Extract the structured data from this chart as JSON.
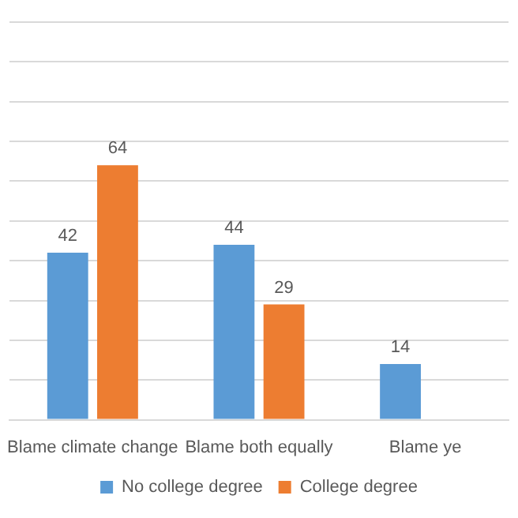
{
  "chart_data": {
    "type": "bar",
    "categories": [
      "Blame climate change",
      "Blame both equally",
      "Blame ye"
    ],
    "series": [
      {
        "name": "No college degree",
        "color": "#5b9bd5",
        "values": [
          42,
          44,
          14
        ]
      },
      {
        "name": "College degree",
        "color": "#ed7d31",
        "values": [
          64,
          29,
          null
        ]
      }
    ],
    "ylim": [
      0,
      100
    ],
    "yticks": [
      {
        "value": 0,
        "label": null
      },
      {
        "value": 10,
        "label": null
      },
      {
        "value": 20,
        "label": null
      },
      {
        "value": 30,
        "label": null
      },
      {
        "value": 40,
        "label": null
      },
      {
        "value": 50,
        "label": null
      },
      {
        "value": 60,
        "label": null
      },
      {
        "value": 70,
        "label": null
      },
      {
        "value": 80,
        "label": null
      },
      {
        "value": 90,
        "label": null
      },
      {
        "value": 100,
        "label": null
      }
    ],
    "tick_labels": "x",
    "grid": "y",
    "legend": "bottom",
    "data_labels": true
  }
}
